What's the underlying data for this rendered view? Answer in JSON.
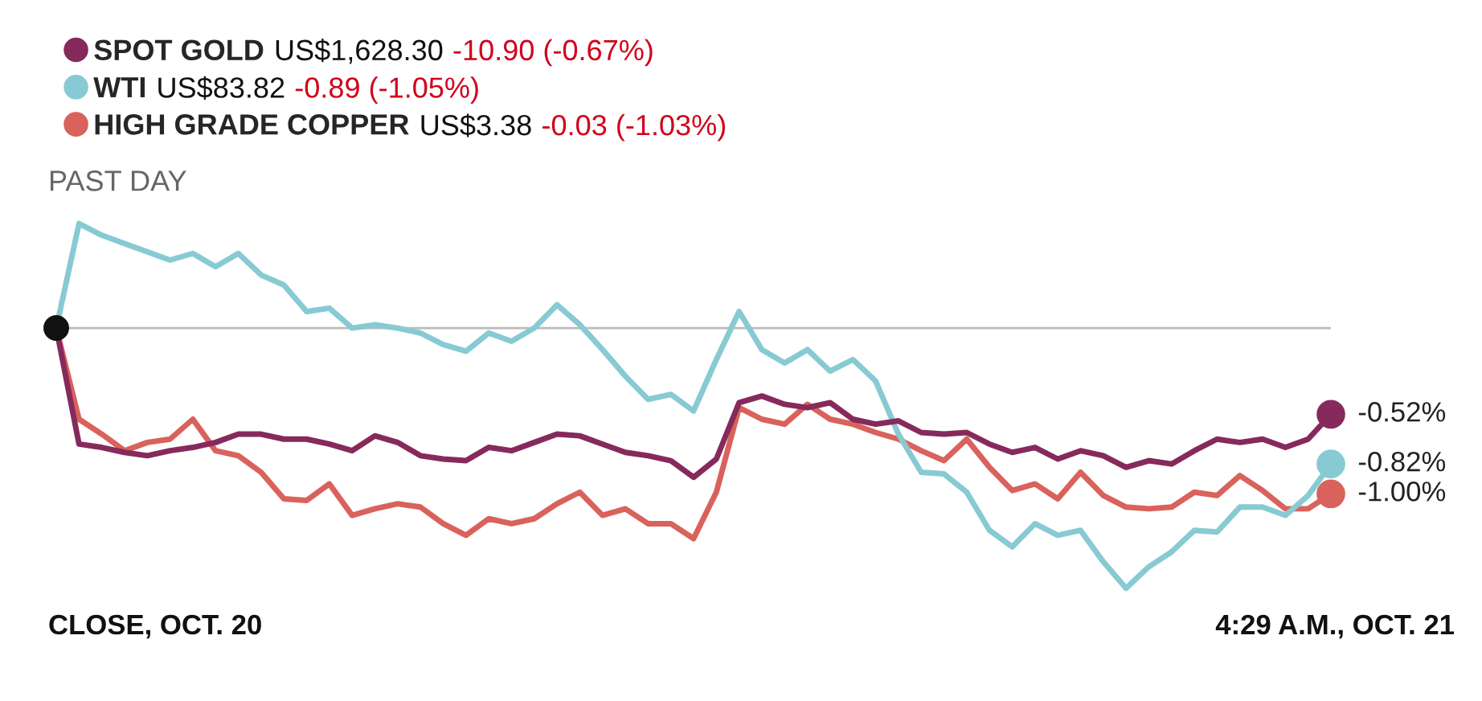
{
  "chart_data": {
    "type": "line",
    "subtitle": "PAST DAY",
    "categories": [
      null,
      null,
      null,
      null,
      null,
      null,
      null,
      null,
      null,
      null,
      null,
      null,
      null,
      null,
      null,
      null,
      null,
      null,
      null,
      null,
      null,
      null,
      null,
      null,
      null,
      null,
      null,
      null,
      null,
      null,
      null,
      null,
      null,
      null,
      null,
      null,
      null,
      null,
      null,
      null,
      null,
      null,
      null,
      null,
      null,
      null,
      null,
      null,
      null,
      null,
      null,
      null,
      null,
      null,
      null,
      null,
      null
    ],
    "legend": "top left",
    "marker": "none",
    "line_style": "solid",
    "ref_lines": [
      {
        "axis": "y",
        "value": 0,
        "color": "#bbbbbb"
      }
    ],
    "annotations": [
      "US$1,628.30",
      "-10.90 (-0.67%)",
      "US$83.82",
      "-0.89 (-1.05%)",
      "US$3.38",
      "-0.03 (-1.03%)",
      "CLOSE, OCT. 20",
      "4:29 A.M., OCT. 21"
    ],
    "series": [
      {
        "name": "SPOT GOLD",
        "color": "#862a5c",
        "values": [
          0,
          -0.7,
          -0.72,
          -0.75,
          -0.77,
          -0.74,
          -0.72,
          -0.69,
          -0.64,
          -0.64,
          -0.67,
          -0.67,
          -0.7,
          -0.74,
          -0.65,
          -0.69,
          -0.77,
          -0.79,
          -0.8,
          -0.72,
          -0.74,
          -0.69,
          -0.64,
          -0.65,
          -0.7,
          -0.75,
          -0.77,
          -0.8,
          -0.9,
          -0.79,
          -0.45,
          -0.41,
          -0.46,
          -0.48,
          -0.45,
          -0.55,
          -0.58,
          -0.56,
          -0.63,
          -0.64,
          -0.63,
          -0.7,
          -0.75,
          -0.72,
          -0.79,
          -0.74,
          -0.77,
          -0.84,
          -0.8,
          -0.82,
          -0.74,
          -0.67,
          -0.69,
          -0.67,
          -0.72,
          -0.67,
          -0.52
        ],
        "value_labels": [
          null,
          null,
          null,
          null,
          null,
          null,
          null,
          null,
          null,
          null,
          null,
          null,
          null,
          null,
          null,
          null,
          null,
          null,
          null,
          null,
          null,
          null,
          null,
          null,
          null,
          null,
          null,
          null,
          null,
          null,
          null,
          null,
          null,
          null,
          null,
          null,
          null,
          null,
          null,
          null,
          null,
          null,
          null,
          null,
          null,
          null,
          null,
          null,
          null,
          null,
          null,
          null,
          null,
          null,
          null,
          null,
          "-0.52%"
        ]
      },
      {
        "name": "WTI",
        "color": "#88cad3",
        "values": [
          0,
          0.63,
          0.56,
          0.51,
          0.46,
          0.41,
          0.45,
          0.37,
          0.45,
          0.32,
          0.26,
          0.1,
          0.12,
          0,
          0.02,
          0,
          -0.03,
          -0.1,
          -0.14,
          -0.03,
          -0.08,
          0,
          0.14,
          0.02,
          -0.13,
          -0.29,
          -0.43,
          -0.4,
          -0.5,
          -0.19,
          0.1,
          -0.13,
          -0.21,
          -0.13,
          -0.26,
          -0.19,
          -0.32,
          -0.64,
          -0.87,
          -0.88,
          -0.99,
          -1.22,
          -1.32,
          -1.18,
          -1.25,
          -1.22,
          -1.41,
          -1.57,
          -1.44,
          -1.35,
          -1.22,
          -1.23,
          -1.08,
          -1.08,
          -1.13,
          -1.01,
          -0.82
        ],
        "value_labels": [
          null,
          null,
          null,
          null,
          null,
          null,
          null,
          null,
          null,
          null,
          null,
          null,
          null,
          null,
          null,
          null,
          null,
          null,
          null,
          null,
          null,
          null,
          null,
          null,
          null,
          null,
          null,
          null,
          null,
          null,
          null,
          null,
          null,
          null,
          null,
          null,
          null,
          null,
          null,
          null,
          null,
          null,
          null,
          null,
          null,
          null,
          null,
          null,
          null,
          null,
          null,
          null,
          null,
          null,
          null,
          null,
          "-0.82%"
        ]
      },
      {
        "name": "HIGH GRADE COPPER",
        "color": "#d9625c",
        "values": [
          0,
          -0.55,
          -0.64,
          -0.74,
          -0.69,
          -0.67,
          -0.55,
          -0.74,
          -0.77,
          -0.87,
          -1.03,
          -1.04,
          -0.94,
          -1.13,
          -1.09,
          -1.06,
          -1.08,
          -1.18,
          -1.25,
          -1.15,
          -1.18,
          -1.15,
          -1.06,
          -0.99,
          -1.13,
          -1.09,
          -1.18,
          -1.18,
          -1.27,
          -0.99,
          -0.48,
          -0.55,
          -0.58,
          -0.46,
          -0.55,
          -0.58,
          -0.63,
          -0.67,
          -0.74,
          -0.8,
          -0.67,
          -0.84,
          -0.98,
          -0.94,
          -1.03,
          -0.87,
          -1.01,
          -1.08,
          -1.09,
          -1.08,
          -0.99,
          -1.01,
          -0.89,
          -0.98,
          -1.09,
          -1.09,
          -1.0
        ],
        "value_labels": [
          null,
          null,
          null,
          null,
          null,
          null,
          null,
          null,
          null,
          null,
          null,
          null,
          null,
          null,
          null,
          null,
          null,
          null,
          null,
          null,
          null,
          null,
          null,
          null,
          null,
          null,
          null,
          null,
          null,
          null,
          null,
          null,
          null,
          null,
          null,
          null,
          null,
          null,
          null,
          null,
          null,
          null,
          null,
          null,
          null,
          null,
          null,
          null,
          null,
          null,
          null,
          null,
          null,
          null,
          null,
          null,
          "-1.00%"
        ]
      }
    ]
  }
}
